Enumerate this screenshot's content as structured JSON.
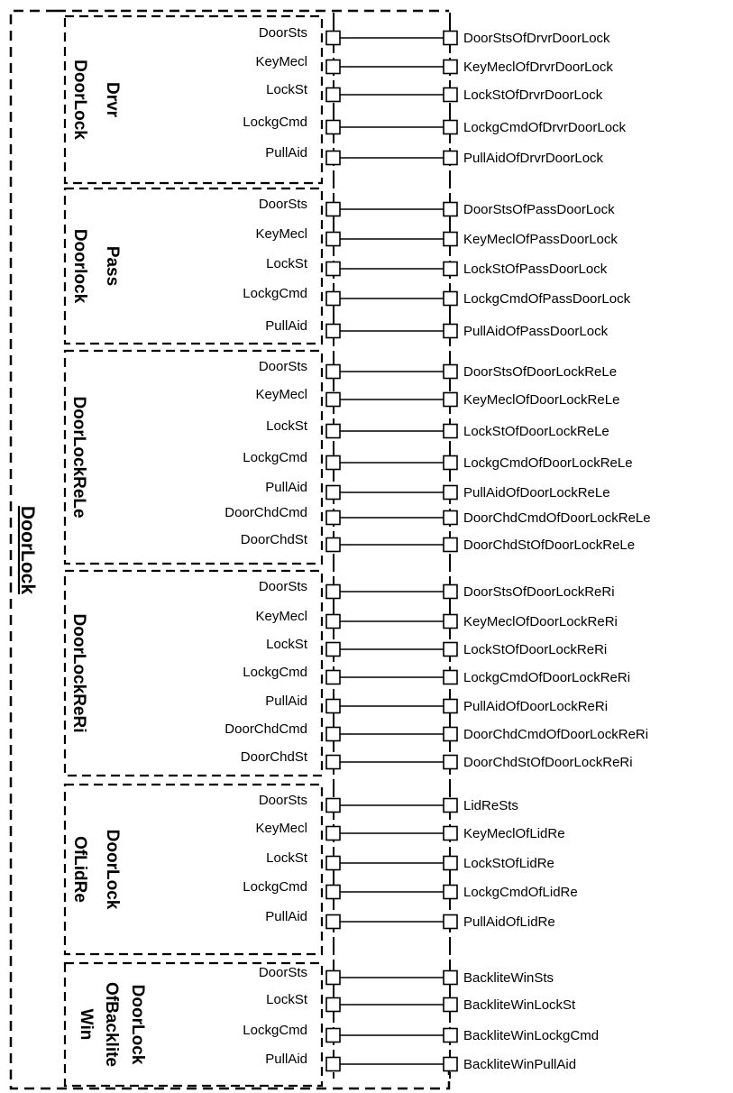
{
  "outer_label": "DoorLock",
  "groups": [
    {
      "name": "DrvrDoorLock",
      "label_lines": [
        "Drvr",
        "DoorLock"
      ],
      "ports": [
        "DoorSts",
        "KeyMecl",
        "LockSt",
        "LockgCmd",
        "PullAid"
      ],
      "signals": [
        "DoorStsOfDrvrDoorLock",
        "KeyMeclOfDrvrDoorLock",
        "LockStOfDrvrDoorLock",
        "LockgCmdOfDrvrDoorLock",
        "PullAidOfDrvrDoorLock"
      ]
    },
    {
      "name": "PassDoorlock",
      "label_lines": [
        "Pass",
        "Doorlock"
      ],
      "ports": [
        "DoorSts",
        "KeyMecl",
        "LockSt",
        "LockgCmd",
        "PullAid"
      ],
      "signals": [
        "DoorStsOfPassDoorLock",
        "KeyMeclOfPassDoorLock",
        "LockStOfPassDoorLock",
        "LockgCmdOfPassDoorLock",
        "PullAidOfPassDoorLock"
      ]
    },
    {
      "name": "DoorLockReLe",
      "label_lines": [
        "DoorLockReLe"
      ],
      "ports": [
        "DoorSts",
        "KeyMecl",
        "LockSt",
        "LockgCmd",
        "PullAid",
        "DoorChdCmd",
        "DoorChdSt"
      ],
      "signals": [
        "DoorStsOfDoorLockReLe",
        "KeyMeclOfDoorLockReLe",
        "LockStOfDoorLockReLe",
        "LockgCmdOfDoorLockReLe",
        "PullAidOfDoorLockReLe",
        "DoorChdCmdOfDoorLockReLe",
        "DoorChdStOfDoorLockReLe"
      ]
    },
    {
      "name": "DoorLockReRi",
      "label_lines": [
        "DoorLockReRi"
      ],
      "ports": [
        "DoorSts",
        "KeyMecl",
        "LockSt",
        "LockgCmd",
        "PullAid",
        "DoorChdCmd",
        "DoorChdSt"
      ],
      "signals": [
        "DoorStsOfDoorLockReRi",
        "KeyMeclOfDoorLockReRi",
        "LockStOfDoorLockReRi",
        "LockgCmdOfDoorLockReRi",
        "PullAidOfDoorLockReRi",
        "DoorChdCmdOfDoorLockReRi",
        "DoorChdStOfDoorLockReRi"
      ]
    },
    {
      "name": "DoorLockOfLidRe",
      "label_lines": [
        "DoorLock",
        "OfLidRe"
      ],
      "ports": [
        "DoorSts",
        "KeyMecl",
        "LockSt",
        "LockgCmd",
        "PullAid"
      ],
      "signals": [
        "LidReSts",
        "KeyMeclOfLidRe",
        "LockStOfLidRe",
        "LockgCmdOfLidRe",
        "PullAidOfLidRe"
      ]
    },
    {
      "name": "DoorLockOfBackliteWin",
      "label_lines": [
        "DoorLock",
        "OfBacklite",
        "Win"
      ],
      "ports": [
        "DoorSts",
        "LockSt",
        "LockgCmd",
        "PullAid"
      ],
      "signals": [
        "BackliteWinSts",
        "BackliteWinLockSt",
        "BackliteWinLockgCmd",
        "BackliteWinPullAid"
      ]
    }
  ]
}
